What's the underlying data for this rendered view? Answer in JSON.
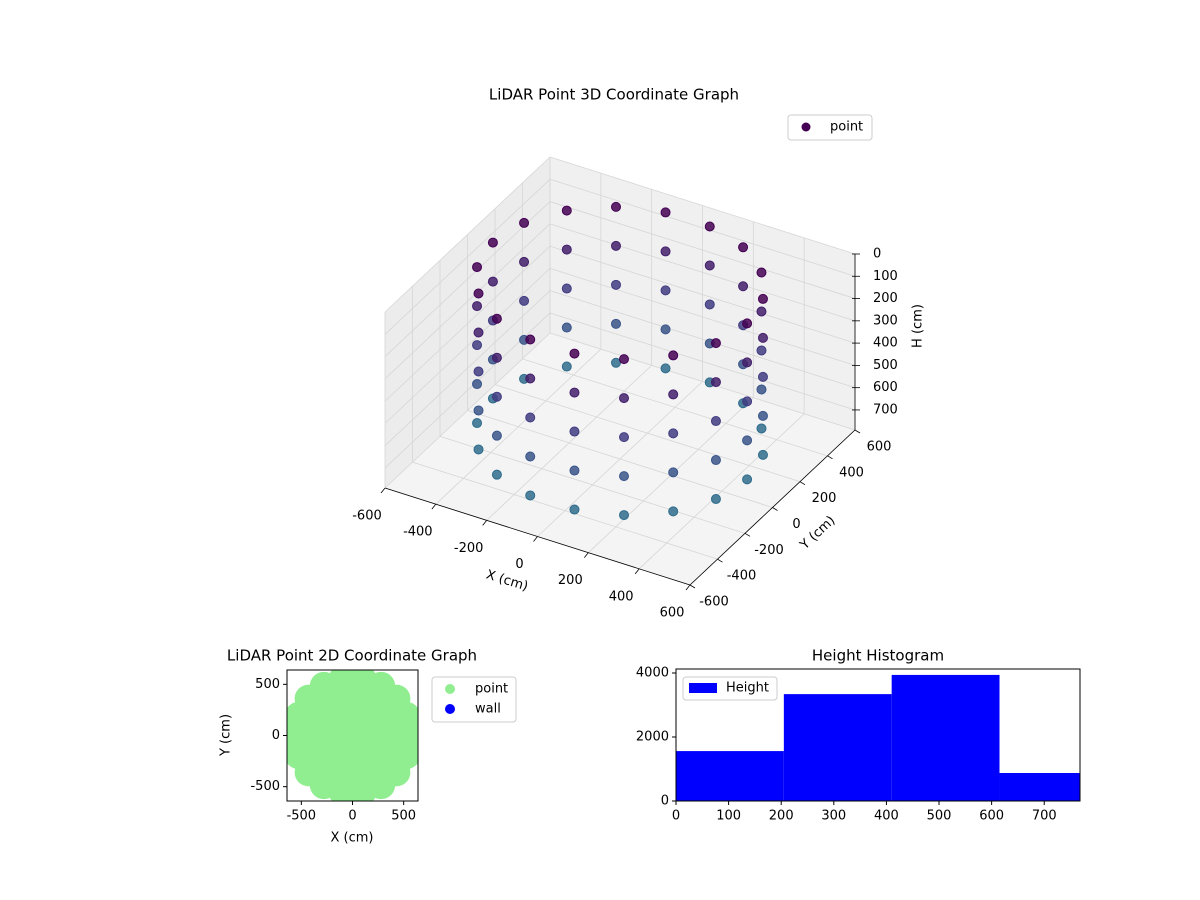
{
  "chart_data": [
    {
      "type": "scatter3d",
      "title": "LiDAR Point 3D Coordinate Graph",
      "xlabel": "X (cm)",
      "ylabel": "Y (cm)",
      "zlabel": "H (cm)",
      "xlim": [
        -600,
        600
      ],
      "ylim": [
        -600,
        600
      ],
      "zlim": [
        790,
        0
      ],
      "xticks": [
        -600,
        -400,
        -200,
        0,
        200,
        400,
        600
      ],
      "yticks": [
        -600,
        -400,
        -200,
        0,
        200,
        400,
        600
      ],
      "zticks": [
        0,
        100,
        200,
        300,
        400,
        500,
        600,
        700
      ],
      "colormap": [
        "#440154",
        "#414487",
        "#2a788e"
      ],
      "grid": true,
      "legend": "upper right",
      "series": [
        {
          "name": "point",
          "color": "#440154",
          "x": [
            500,
            470,
            383,
            250,
            87,
            -87,
            -250,
            -383,
            -470,
            -500,
            -470,
            -383,
            -250,
            -87,
            87,
            250,
            383,
            470,
            500,
            470,
            383,
            250,
            87,
            -87,
            -250,
            -383,
            -470,
            -500,
            -470,
            -383,
            -250,
            -87,
            87,
            250,
            383,
            470,
            500,
            470,
            383,
            250,
            87,
            -87,
            -250,
            -383,
            -470,
            -500,
            -470,
            -383,
            -250,
            -87,
            87,
            250,
            383,
            470,
            500,
            470,
            383,
            250,
            87,
            -87,
            -250,
            -383,
            -470,
            -500,
            -470,
            -383,
            -250,
            -87,
            87,
            250,
            383,
            470,
            500,
            470,
            383,
            250,
            87,
            -87,
            -250,
            -383,
            -470,
            -500,
            -470,
            -383,
            -250,
            -87,
            87,
            250,
            383,
            470
          ],
          "y": [
            0,
            171,
            321,
            433,
            492,
            492,
            433,
            321,
            171,
            0,
            -171,
            -321,
            -433,
            -492,
            -492,
            -433,
            -321,
            -171,
            0,
            171,
            321,
            433,
            492,
            492,
            433,
            321,
            171,
            0,
            -171,
            -321,
            -433,
            -492,
            -492,
            -433,
            -321,
            -171,
            0,
            171,
            321,
            433,
            492,
            492,
            433,
            321,
            171,
            0,
            -171,
            -321,
            -433,
            -492,
            -492,
            -433,
            -321,
            -171,
            0,
            171,
            321,
            433,
            492,
            492,
            433,
            321,
            171,
            0,
            -171,
            -321,
            -433,
            -492,
            -492,
            -433,
            -321,
            -171,
            0,
            171,
            321,
            433,
            492,
            492,
            433,
            321,
            171,
            0,
            -171,
            -321,
            -433,
            -492,
            -492,
            -433,
            -321,
            -171
          ],
          "z": [
            0,
            0,
            0,
            0,
            0,
            0,
            0,
            0,
            0,
            0,
            0,
            0,
            0,
            0,
            0,
            0,
            0,
            0,
            175,
            175,
            175,
            175,
            175,
            175,
            175,
            175,
            175,
            175,
            175,
            175,
            175,
            175,
            175,
            175,
            175,
            175,
            350,
            350,
            350,
            350,
            350,
            350,
            350,
            350,
            350,
            350,
            350,
            350,
            350,
            350,
            350,
            350,
            350,
            350,
            525,
            525,
            525,
            525,
            525,
            525,
            525,
            525,
            525,
            525,
            525,
            525,
            525,
            525,
            525,
            525,
            525,
            525,
            700,
            700,
            700,
            700,
            700,
            700,
            700,
            700,
            700,
            700,
            700,
            700,
            700,
            700,
            700,
            700,
            700,
            700
          ]
        }
      ]
    },
    {
      "type": "scatter",
      "title": "LiDAR Point 2D Coordinate Graph",
      "xlabel": "X (cm)",
      "ylabel": "Y (cm)",
      "xlim": [
        -640,
        640
      ],
      "ylim": [
        -640,
        640
      ],
      "xticks": [
        -500,
        0,
        500
      ],
      "yticks": [
        -500,
        0,
        500
      ],
      "legend": "outside right",
      "series": [
        {
          "name": "point",
          "color": "#90ee90",
          "x": [
            560,
            526,
            429,
            280,
            97,
            -97,
            -280,
            -429,
            -526,
            -560,
            -526,
            -429,
            -280,
            -97,
            97,
            280,
            429,
            526,
            380,
            329,
            190,
            0,
            -190,
            -329,
            -380,
            -329,
            -190,
            0,
            190,
            329,
            190,
            95,
            -95,
            -190,
            -95,
            95,
            0
          ],
          "y": [
            0,
            192,
            360,
            485,
            551,
            551,
            485,
            360,
            192,
            0,
            -192,
            -360,
            -485,
            -551,
            -551,
            -485,
            -360,
            -192,
            0,
            190,
            329,
            380,
            329,
            190,
            0,
            -190,
            -329,
            -380,
            -329,
            -190,
            0,
            165,
            165,
            0,
            -165,
            -165,
            0
          ]
        },
        {
          "name": "wall",
          "color": "#0000ff",
          "x": [],
          "y": []
        }
      ]
    },
    {
      "type": "histogram",
      "title": "Height Histogram",
      "xlim": [
        0,
        768
      ],
      "ylim": [
        0,
        4125
      ],
      "xticks": [
        0,
        100,
        200,
        300,
        400,
        500,
        600,
        700
      ],
      "yticks": [
        0,
        2000,
        4000
      ],
      "bins": [
        0,
        205,
        410,
        615,
        820
      ],
      "legend": "upper left",
      "series": [
        {
          "name": "Height",
          "color": "#0000ff",
          "values": [
            1560,
            3340,
            3940,
            875
          ]
        }
      ]
    }
  ]
}
